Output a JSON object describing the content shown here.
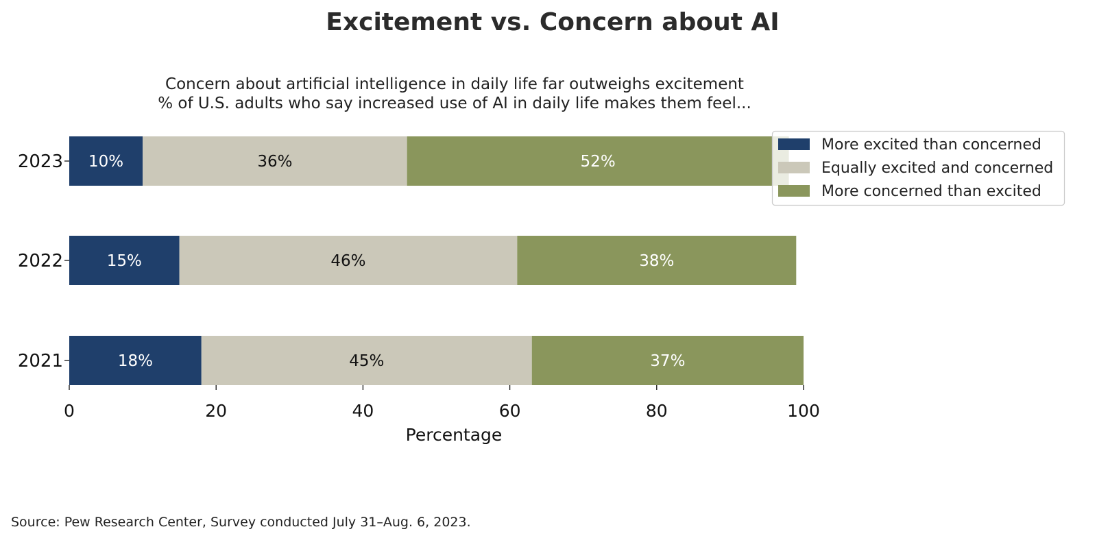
{
  "chart_data": {
    "type": "bar",
    "orientation": "horizontal",
    "stacked": true,
    "title": "Excitement vs. Concern about AI",
    "subtitle": [
      "Concern about artificial intelligence in daily life far outweighs excitement",
      "% of U.S. adults who say increased use of AI in daily life makes them feel..."
    ],
    "xlabel": "Percentage",
    "ylabel": "",
    "xlim": [
      0,
      100
    ],
    "xticks": [
      0,
      20,
      40,
      60,
      80,
      100
    ],
    "categories": [
      "2023",
      "2022",
      "2021"
    ],
    "series": [
      {
        "name": "More excited than concerned",
        "color": "#1f3f6b",
        "label_color": "#ffffff",
        "values": [
          10,
          15,
          18
        ],
        "labels": [
          "10%",
          "15%",
          "18%"
        ]
      },
      {
        "name": "Equally excited and concerned",
        "color": "#cbc8b9",
        "label_color": "#111111",
        "values": [
          36,
          46,
          45
        ],
        "labels": [
          "36%",
          "46%",
          "45%"
        ]
      },
      {
        "name": "More concerned than excited",
        "color": "#8a965c",
        "label_color": "#ffffff",
        "values": [
          52,
          38,
          37
        ],
        "labels": [
          "52%",
          "38%",
          "37%"
        ]
      }
    ],
    "grid": false,
    "legend_position": "top-right",
    "source": "Source: Pew Research Center, Survey conducted July 31–Aug. 6, 2023."
  }
}
